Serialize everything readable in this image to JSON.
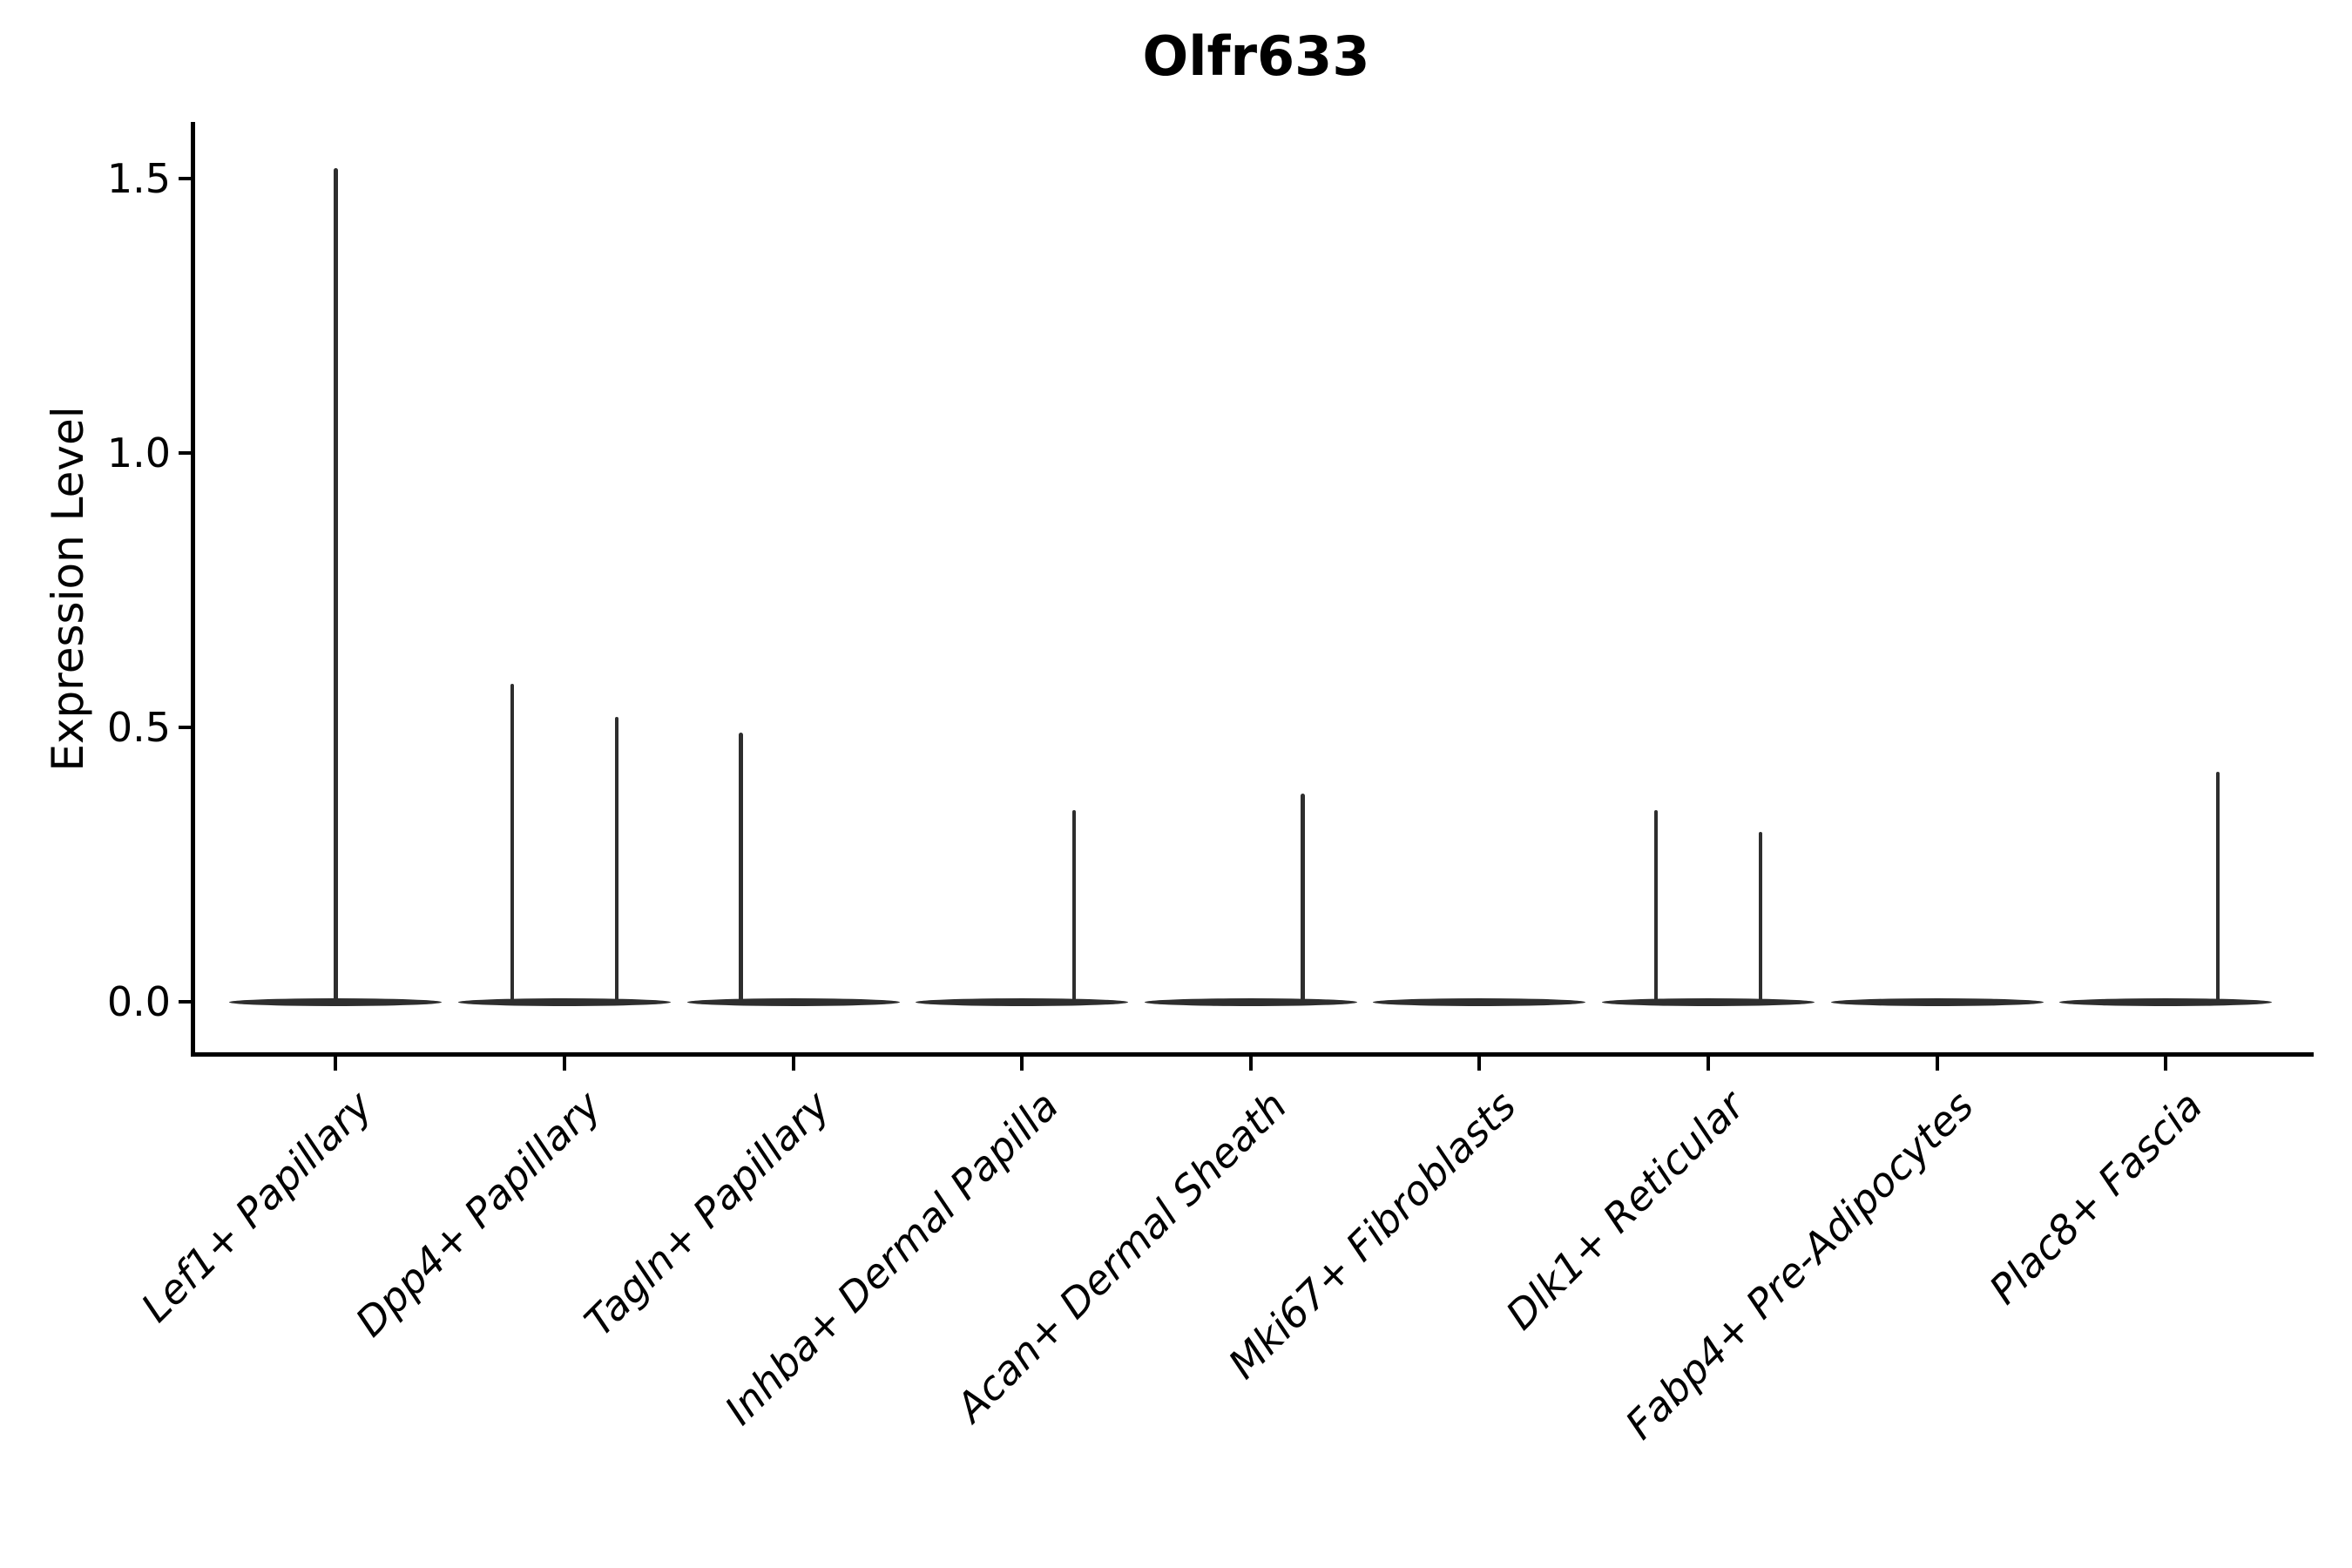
{
  "chart_data": {
    "type": "violin",
    "title": "Olfr633",
    "ylabel": "Expression Level",
    "xlabel": "",
    "yticks": [
      0.0,
      0.5,
      1.0,
      1.5
    ],
    "ylim": [
      -0.09,
      1.61
    ],
    "grid": false,
    "legend": "none",
    "categories": [
      "Lef1+ Papillary",
      "Dpp4+ Papillary",
      "Tagln+ Papillary",
      "Inhba+ Dermal Papilla",
      "Acan+ Dermal Sheath",
      "Mki67+ Fibroblasts",
      "Dlk1+ Reticular",
      "Fabp4+ Pre-Adipocytes",
      "Plac8+ Fascia"
    ],
    "violins": [
      {
        "category": "Lef1+ Papillary",
        "base_value": 0.0,
        "spikes": [
          {
            "position": "center",
            "max": 1.52
          }
        ]
      },
      {
        "category": "Dpp4+ Papillary",
        "base_value": 0.0,
        "spikes": [
          {
            "position": "left",
            "max": 0.58
          },
          {
            "position": "right",
            "max": 0.52
          }
        ]
      },
      {
        "category": "Tagln+ Papillary",
        "base_value": 0.0,
        "spikes": [
          {
            "position": "left",
            "max": 0.49
          }
        ]
      },
      {
        "category": "Inhba+ Dermal Papilla",
        "base_value": 0.0,
        "spikes": [
          {
            "position": "right",
            "max": 0.35
          }
        ]
      },
      {
        "category": "Acan+ Dermal Sheath",
        "base_value": 0.0,
        "spikes": [
          {
            "position": "right",
            "max": 0.38
          }
        ]
      },
      {
        "category": "Mki67+ Fibroblasts",
        "base_value": 0.0,
        "spikes": []
      },
      {
        "category": "Dlk1+ Reticular",
        "base_value": 0.0,
        "spikes": [
          {
            "position": "left",
            "max": 0.35
          },
          {
            "position": "right",
            "max": 0.31
          }
        ]
      },
      {
        "category": "Fabp4+ Pre-Adipocytes",
        "base_value": 0.0,
        "spikes": []
      },
      {
        "category": "Plac8+ Fascia",
        "base_value": 0.0,
        "spikes": [
          {
            "position": "right",
            "max": 0.42
          }
        ]
      }
    ],
    "colors": {
      "violin": "#2e2e2e",
      "axis": "#000000",
      "text": "#000000"
    }
  }
}
